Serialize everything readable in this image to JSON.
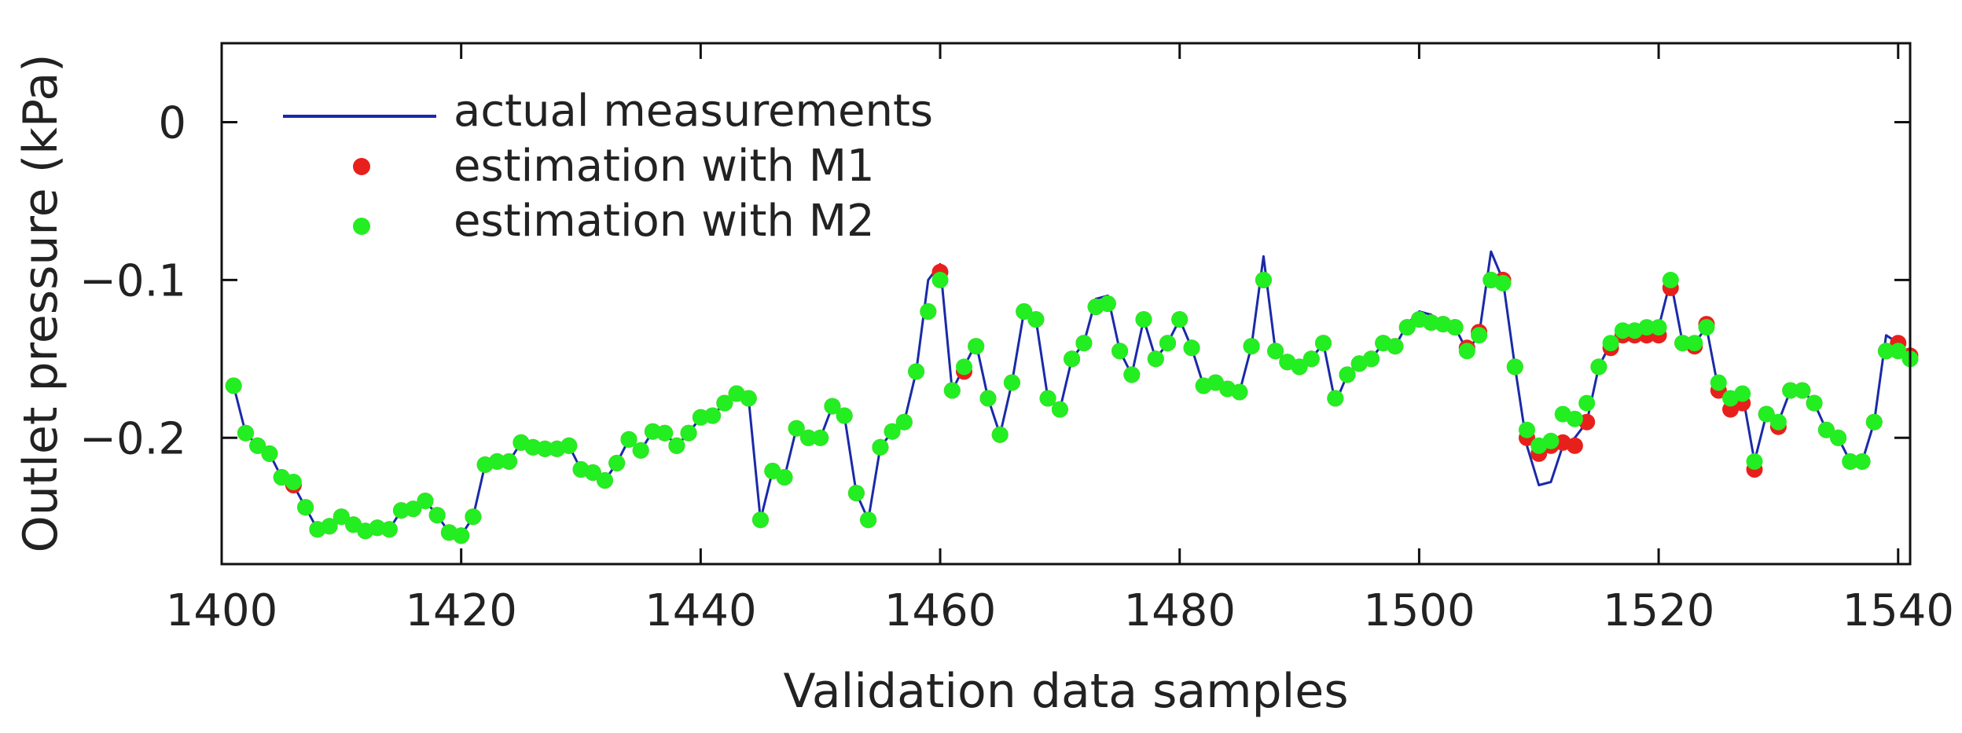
{
  "chart_data": {
    "type": "line",
    "title": "",
    "xlabel": "Validation data samples",
    "ylabel": "Outlet pressure (kPa)",
    "xlim": [
      1400,
      1541
    ],
    "ylim": [
      -0.28,
      0.05
    ],
    "xticks": [
      1400,
      1420,
      1440,
      1460,
      1480,
      1500,
      1520,
      1540
    ],
    "xtick_labels": [
      "1400",
      "1420",
      "1440",
      "1460",
      "1480",
      "1500",
      "1520",
      "1540"
    ],
    "yticks": [
      0,
      -0.1,
      -0.2
    ],
    "ytick_labels": [
      "0",
      "−0.1",
      "−0.2"
    ],
    "grid": false,
    "legend_position": "top-left",
    "colors": {
      "actual": "#1a2aa8",
      "m1": "#e8201c",
      "m2": "#22ee22",
      "axis": "#111111"
    },
    "x": [
      1401,
      1402,
      1403,
      1404,
      1405,
      1406,
      1407,
      1408,
      1409,
      1410,
      1411,
      1412,
      1413,
      1414,
      1415,
      1416,
      1417,
      1418,
      1419,
      1420,
      1421,
      1422,
      1423,
      1424,
      1425,
      1426,
      1427,
      1428,
      1429,
      1430,
      1431,
      1432,
      1433,
      1434,
      1435,
      1436,
      1437,
      1438,
      1439,
      1440,
      1441,
      1442,
      1443,
      1444,
      1445,
      1446,
      1447,
      1448,
      1449,
      1450,
      1451,
      1452,
      1453,
      1454,
      1455,
      1456,
      1457,
      1458,
      1459,
      1460,
      1461,
      1462,
      1463,
      1464,
      1465,
      1466,
      1467,
      1468,
      1469,
      1470,
      1471,
      1472,
      1473,
      1474,
      1475,
      1476,
      1477,
      1478,
      1479,
      1480,
      1481,
      1482,
      1483,
      1484,
      1485,
      1486,
      1487,
      1488,
      1489,
      1490,
      1491,
      1492,
      1493,
      1494,
      1495,
      1496,
      1497,
      1498,
      1499,
      1500,
      1501,
      1502,
      1503,
      1504,
      1505,
      1506,
      1507,
      1508,
      1509,
      1510,
      1511,
      1512,
      1513,
      1514,
      1515,
      1516,
      1517,
      1518,
      1519,
      1520,
      1521,
      1522,
      1523,
      1524,
      1525,
      1526,
      1527,
      1528,
      1529,
      1530,
      1531,
      1532,
      1533,
      1534,
      1535,
      1536,
      1537,
      1538,
      1539,
      1540,
      1541
    ],
    "series": [
      {
        "name": "actual measurements",
        "marker": "line",
        "values": [
          -0.167,
          -0.197,
          -0.205,
          -0.21,
          -0.225,
          -0.23,
          -0.244,
          -0.258,
          -0.256,
          -0.25,
          -0.255,
          -0.259,
          -0.257,
          -0.258,
          -0.246,
          -0.245,
          -0.24,
          -0.249,
          -0.26,
          -0.262,
          -0.25,
          -0.217,
          -0.215,
          -0.215,
          -0.203,
          -0.206,
          -0.207,
          -0.207,
          -0.205,
          -0.22,
          -0.222,
          -0.227,
          -0.216,
          -0.201,
          -0.208,
          -0.196,
          -0.197,
          -0.205,
          -0.197,
          -0.187,
          -0.186,
          -0.178,
          -0.172,
          -0.175,
          -0.252,
          -0.221,
          -0.225,
          -0.194,
          -0.2,
          -0.2,
          -0.18,
          -0.186,
          -0.235,
          -0.252,
          -0.206,
          -0.196,
          -0.19,
          -0.158,
          -0.1,
          -0.09,
          -0.17,
          -0.155,
          -0.14,
          -0.175,
          -0.198,
          -0.165,
          -0.12,
          -0.125,
          -0.175,
          -0.182,
          -0.15,
          -0.14,
          -0.112,
          -0.11,
          -0.145,
          -0.16,
          -0.125,
          -0.15,
          -0.14,
          -0.125,
          -0.143,
          -0.167,
          -0.165,
          -0.169,
          -0.171,
          -0.142,
          -0.085,
          -0.145,
          -0.152,
          -0.155,
          -0.15,
          -0.14,
          -0.178,
          -0.16,
          -0.153,
          -0.15,
          -0.14,
          -0.142,
          -0.128,
          -0.12,
          -0.122,
          -0.128,
          -0.13,
          -0.145,
          -0.135,
          -0.082,
          -0.1,
          -0.155,
          -0.205,
          -0.23,
          -0.228,
          -0.205,
          -0.2,
          -0.19,
          -0.155,
          -0.14,
          -0.132,
          -0.135,
          -0.13,
          -0.13,
          -0.1,
          -0.14,
          -0.14,
          -0.13,
          -0.17,
          -0.175,
          -0.172,
          -0.215,
          -0.185,
          -0.19,
          -0.17,
          -0.17,
          -0.178,
          -0.195,
          -0.2,
          -0.215,
          -0.215,
          -0.19,
          -0.135,
          -0.14,
          -0.148
        ]
      },
      {
        "name": "estimation with M1",
        "marker": "dot",
        "values": [
          -0.167,
          -0.197,
          -0.205,
          -0.21,
          -0.225,
          -0.23,
          -0.244,
          -0.258,
          -0.256,
          -0.25,
          -0.255,
          -0.259,
          -0.257,
          -0.258,
          -0.246,
          -0.245,
          -0.24,
          -0.249,
          -0.26,
          -0.262,
          -0.25,
          -0.217,
          -0.215,
          -0.215,
          -0.203,
          -0.206,
          -0.207,
          -0.207,
          -0.205,
          -0.22,
          -0.222,
          -0.227,
          -0.216,
          -0.201,
          -0.208,
          -0.196,
          -0.197,
          -0.205,
          -0.197,
          -0.187,
          -0.186,
          -0.178,
          -0.172,
          -0.175,
          -0.252,
          -0.221,
          -0.225,
          -0.194,
          -0.2,
          -0.2,
          -0.18,
          -0.186,
          -0.235,
          -0.252,
          -0.206,
          -0.196,
          -0.19,
          -0.158,
          -0.12,
          -0.095,
          -0.17,
          -0.158,
          -0.142,
          -0.175,
          -0.198,
          -0.165,
          -0.12,
          -0.125,
          -0.175,
          -0.182,
          -0.15,
          -0.14,
          -0.117,
          -0.115,
          -0.145,
          -0.16,
          -0.125,
          -0.15,
          -0.14,
          -0.125,
          -0.143,
          -0.167,
          -0.165,
          -0.169,
          -0.171,
          -0.142,
          -0.1,
          -0.145,
          -0.152,
          -0.155,
          -0.15,
          -0.14,
          -0.175,
          -0.16,
          -0.153,
          -0.15,
          -0.14,
          -0.142,
          -0.13,
          -0.125,
          -0.127,
          -0.128,
          -0.13,
          -0.143,
          -0.133,
          -0.1,
          -0.1,
          -0.155,
          -0.2,
          -0.21,
          -0.205,
          -0.203,
          -0.205,
          -0.19,
          -0.155,
          -0.143,
          -0.135,
          -0.135,
          -0.135,
          -0.135,
          -0.105,
          -0.14,
          -0.142,
          -0.128,
          -0.17,
          -0.182,
          -0.178,
          -0.22,
          -0.185,
          -0.193,
          -0.17,
          -0.17,
          -0.178,
          -0.195,
          -0.2,
          -0.215,
          -0.215,
          -0.19,
          -0.145,
          -0.14,
          -0.148
        ]
      },
      {
        "name": "estimation with M2",
        "marker": "dot",
        "values": [
          -0.167,
          -0.197,
          -0.205,
          -0.21,
          -0.225,
          -0.228,
          -0.244,
          -0.258,
          -0.256,
          -0.25,
          -0.255,
          -0.259,
          -0.257,
          -0.258,
          -0.246,
          -0.245,
          -0.24,
          -0.249,
          -0.26,
          -0.262,
          -0.25,
          -0.217,
          -0.215,
          -0.215,
          -0.203,
          -0.206,
          -0.207,
          -0.207,
          -0.205,
          -0.22,
          -0.222,
          -0.227,
          -0.216,
          -0.201,
          -0.208,
          -0.196,
          -0.197,
          -0.205,
          -0.197,
          -0.187,
          -0.186,
          -0.178,
          -0.172,
          -0.175,
          -0.252,
          -0.221,
          -0.225,
          -0.194,
          -0.2,
          -0.2,
          -0.18,
          -0.186,
          -0.235,
          -0.252,
          -0.206,
          -0.196,
          -0.19,
          -0.158,
          -0.12,
          -0.1,
          -0.17,
          -0.155,
          -0.142,
          -0.175,
          -0.198,
          -0.165,
          -0.12,
          -0.125,
          -0.175,
          -0.182,
          -0.15,
          -0.14,
          -0.117,
          -0.115,
          -0.145,
          -0.16,
          -0.125,
          -0.15,
          -0.14,
          -0.125,
          -0.143,
          -0.167,
          -0.165,
          -0.169,
          -0.171,
          -0.142,
          -0.1,
          -0.145,
          -0.152,
          -0.155,
          -0.15,
          -0.14,
          -0.175,
          -0.16,
          -0.153,
          -0.15,
          -0.14,
          -0.142,
          -0.13,
          -0.125,
          -0.127,
          -0.128,
          -0.13,
          -0.145,
          -0.135,
          -0.1,
          -0.102,
          -0.155,
          -0.195,
          -0.205,
          -0.202,
          -0.185,
          -0.188,
          -0.178,
          -0.155,
          -0.14,
          -0.132,
          -0.132,
          -0.13,
          -0.13,
          -0.1,
          -0.14,
          -0.14,
          -0.13,
          -0.165,
          -0.175,
          -0.172,
          -0.215,
          -0.185,
          -0.19,
          -0.17,
          -0.17,
          -0.178,
          -0.195,
          -0.2,
          -0.215,
          -0.215,
          -0.19,
          -0.145,
          -0.145,
          -0.15
        ]
      }
    ]
  }
}
